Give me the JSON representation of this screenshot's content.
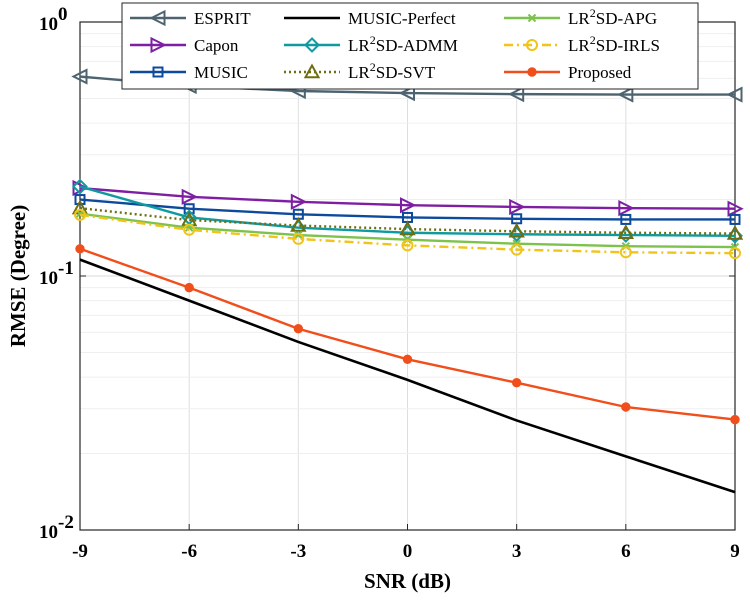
{
  "chart_data": {
    "type": "line",
    "title": "",
    "xlabel": "SNR (dB)",
    "ylabel": "RMSE (Degree)",
    "x": [
      -9,
      -6,
      -3,
      0,
      3,
      6,
      9
    ],
    "x_tick_labels": [
      "-9",
      "-6",
      "-3",
      "0",
      "3",
      "6",
      "9"
    ],
    "xlim": [
      -9,
      9
    ],
    "ylim": [
      0.01,
      1
    ],
    "yscale": "log",
    "y_ticks": [
      {
        "value": 1,
        "base": "10",
        "exp": "0"
      },
      {
        "value": 0.1,
        "base": "10",
        "exp": "-1"
      },
      {
        "value": 0.01,
        "base": "10",
        "exp": "-2"
      }
    ],
    "grid": true,
    "legend_position": "top",
    "series": [
      {
        "name": "ESPRIT",
        "name_base": "ESPRIT",
        "name_sup": "",
        "name_rest": "",
        "color": "#4d6470",
        "marker": "triangle-left",
        "dash": "solid",
        "values": [
          0.61,
          0.56,
          0.535,
          0.525,
          0.52,
          0.518,
          0.518
        ]
      },
      {
        "name": "Capon",
        "name_base": "Capon",
        "name_sup": "",
        "name_rest": "",
        "color": "#7e1fa3",
        "marker": "triangle-right",
        "dash": "solid",
        "values": [
          0.222,
          0.205,
          0.196,
          0.19,
          0.187,
          0.185,
          0.184
        ]
      },
      {
        "name": "MUSIC",
        "name_base": "MUSIC",
        "name_sup": "",
        "name_rest": "",
        "color": "#0e4a9c",
        "marker": "square",
        "dash": "solid",
        "values": [
          0.2,
          0.184,
          0.175,
          0.17,
          0.168,
          0.167,
          0.167
        ]
      },
      {
        "name": "MUSIC-Perfect",
        "name_base": "MUSIC-Perfect",
        "name_sup": "",
        "name_rest": "",
        "color": "#000000",
        "marker": "none",
        "dash": "solid",
        "values": [
          0.116,
          0.08,
          0.055,
          0.039,
          0.027,
          0.0195,
          0.0141
        ]
      },
      {
        "name": "LR2SD-ADMM",
        "name_base": "LR",
        "name_sup": "2",
        "name_rest": "SD-ADMM",
        "color": "#0f9aa1",
        "marker": "diamond",
        "dash": "solid",
        "values": [
          0.225,
          0.17,
          0.155,
          0.148,
          0.146,
          0.145,
          0.144
        ]
      },
      {
        "name": "LR2SD-SVT",
        "name_base": "LR",
        "name_sup": "2",
        "name_rest": "SD-SVT",
        "color": "#6e6e10",
        "marker": "triangle-up",
        "dash": "dotted",
        "values": [
          0.185,
          0.166,
          0.158,
          0.153,
          0.15,
          0.148,
          0.147
        ]
      },
      {
        "name": "LR2SD-APG",
        "name_base": "LR",
        "name_sup": "2",
        "name_rest": "SD-APG",
        "color": "#7cc24c",
        "marker": "x",
        "dash": "solid",
        "values": [
          0.176,
          0.155,
          0.145,
          0.139,
          0.134,
          0.131,
          0.13
        ]
      },
      {
        "name": "LR2SD-IRLS",
        "name_base": "LR",
        "name_sup": "2",
        "name_rest": "SD-IRLS",
        "color": "#f0c419",
        "marker": "circle-open",
        "dash": "dashdot",
        "values": [
          0.174,
          0.152,
          0.14,
          0.132,
          0.127,
          0.124,
          0.123
        ]
      },
      {
        "name": "Proposed",
        "name_base": "Proposed",
        "name_sup": "",
        "name_rest": "",
        "color": "#f04e1b",
        "marker": "circle-filled",
        "dash": "solid",
        "values": [
          0.128,
          0.09,
          0.062,
          0.047,
          0.038,
          0.0305,
          0.0272
        ]
      }
    ]
  }
}
